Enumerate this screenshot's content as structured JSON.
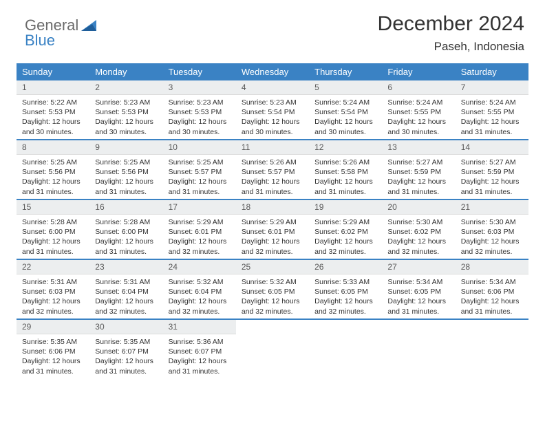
{
  "brand": {
    "word1": "General",
    "word2": "Blue"
  },
  "title": "December 2024",
  "location": "Paseh, Indonesia",
  "colors": {
    "header_bg": "#3a82c4",
    "header_fg": "#ffffff",
    "daynum_bg": "#eceeef",
    "daynum_fg": "#5a5a5a",
    "rule": "#3a82c4",
    "text": "#333333",
    "page_bg": "#ffffff"
  },
  "typography": {
    "title_fontsize": 30,
    "location_fontsize": 17,
    "header_fontsize": 13,
    "daynum_fontsize": 12,
    "body_fontsize": 10.5
  },
  "columns": [
    "Sunday",
    "Monday",
    "Tuesday",
    "Wednesday",
    "Thursday",
    "Friday",
    "Saturday"
  ],
  "weeks": [
    [
      {
        "n": "1",
        "sr": "Sunrise: 5:22 AM",
        "ss": "Sunset: 5:53 PM",
        "d1": "Daylight: 12 hours",
        "d2": "and 30 minutes."
      },
      {
        "n": "2",
        "sr": "Sunrise: 5:23 AM",
        "ss": "Sunset: 5:53 PM",
        "d1": "Daylight: 12 hours",
        "d2": "and 30 minutes."
      },
      {
        "n": "3",
        "sr": "Sunrise: 5:23 AM",
        "ss": "Sunset: 5:53 PM",
        "d1": "Daylight: 12 hours",
        "d2": "and 30 minutes."
      },
      {
        "n": "4",
        "sr": "Sunrise: 5:23 AM",
        "ss": "Sunset: 5:54 PM",
        "d1": "Daylight: 12 hours",
        "d2": "and 30 minutes."
      },
      {
        "n": "5",
        "sr": "Sunrise: 5:24 AM",
        "ss": "Sunset: 5:54 PM",
        "d1": "Daylight: 12 hours",
        "d2": "and 30 minutes."
      },
      {
        "n": "6",
        "sr": "Sunrise: 5:24 AM",
        "ss": "Sunset: 5:55 PM",
        "d1": "Daylight: 12 hours",
        "d2": "and 30 minutes."
      },
      {
        "n": "7",
        "sr": "Sunrise: 5:24 AM",
        "ss": "Sunset: 5:55 PM",
        "d1": "Daylight: 12 hours",
        "d2": "and 31 minutes."
      }
    ],
    [
      {
        "n": "8",
        "sr": "Sunrise: 5:25 AM",
        "ss": "Sunset: 5:56 PM",
        "d1": "Daylight: 12 hours",
        "d2": "and 31 minutes."
      },
      {
        "n": "9",
        "sr": "Sunrise: 5:25 AM",
        "ss": "Sunset: 5:56 PM",
        "d1": "Daylight: 12 hours",
        "d2": "and 31 minutes."
      },
      {
        "n": "10",
        "sr": "Sunrise: 5:25 AM",
        "ss": "Sunset: 5:57 PM",
        "d1": "Daylight: 12 hours",
        "d2": "and 31 minutes."
      },
      {
        "n": "11",
        "sr": "Sunrise: 5:26 AM",
        "ss": "Sunset: 5:57 PM",
        "d1": "Daylight: 12 hours",
        "d2": "and 31 minutes."
      },
      {
        "n": "12",
        "sr": "Sunrise: 5:26 AM",
        "ss": "Sunset: 5:58 PM",
        "d1": "Daylight: 12 hours",
        "d2": "and 31 minutes."
      },
      {
        "n": "13",
        "sr": "Sunrise: 5:27 AM",
        "ss": "Sunset: 5:59 PM",
        "d1": "Daylight: 12 hours",
        "d2": "and 31 minutes."
      },
      {
        "n": "14",
        "sr": "Sunrise: 5:27 AM",
        "ss": "Sunset: 5:59 PM",
        "d1": "Daylight: 12 hours",
        "d2": "and 31 minutes."
      }
    ],
    [
      {
        "n": "15",
        "sr": "Sunrise: 5:28 AM",
        "ss": "Sunset: 6:00 PM",
        "d1": "Daylight: 12 hours",
        "d2": "and 31 minutes."
      },
      {
        "n": "16",
        "sr": "Sunrise: 5:28 AM",
        "ss": "Sunset: 6:00 PM",
        "d1": "Daylight: 12 hours",
        "d2": "and 31 minutes."
      },
      {
        "n": "17",
        "sr": "Sunrise: 5:29 AM",
        "ss": "Sunset: 6:01 PM",
        "d1": "Daylight: 12 hours",
        "d2": "and 32 minutes."
      },
      {
        "n": "18",
        "sr": "Sunrise: 5:29 AM",
        "ss": "Sunset: 6:01 PM",
        "d1": "Daylight: 12 hours",
        "d2": "and 32 minutes."
      },
      {
        "n": "19",
        "sr": "Sunrise: 5:29 AM",
        "ss": "Sunset: 6:02 PM",
        "d1": "Daylight: 12 hours",
        "d2": "and 32 minutes."
      },
      {
        "n": "20",
        "sr": "Sunrise: 5:30 AM",
        "ss": "Sunset: 6:02 PM",
        "d1": "Daylight: 12 hours",
        "d2": "and 32 minutes."
      },
      {
        "n": "21",
        "sr": "Sunrise: 5:30 AM",
        "ss": "Sunset: 6:03 PM",
        "d1": "Daylight: 12 hours",
        "d2": "and 32 minutes."
      }
    ],
    [
      {
        "n": "22",
        "sr": "Sunrise: 5:31 AM",
        "ss": "Sunset: 6:03 PM",
        "d1": "Daylight: 12 hours",
        "d2": "and 32 minutes."
      },
      {
        "n": "23",
        "sr": "Sunrise: 5:31 AM",
        "ss": "Sunset: 6:04 PM",
        "d1": "Daylight: 12 hours",
        "d2": "and 32 minutes."
      },
      {
        "n": "24",
        "sr": "Sunrise: 5:32 AM",
        "ss": "Sunset: 6:04 PM",
        "d1": "Daylight: 12 hours",
        "d2": "and 32 minutes."
      },
      {
        "n": "25",
        "sr": "Sunrise: 5:32 AM",
        "ss": "Sunset: 6:05 PM",
        "d1": "Daylight: 12 hours",
        "d2": "and 32 minutes."
      },
      {
        "n": "26",
        "sr": "Sunrise: 5:33 AM",
        "ss": "Sunset: 6:05 PM",
        "d1": "Daylight: 12 hours",
        "d2": "and 32 minutes."
      },
      {
        "n": "27",
        "sr": "Sunrise: 5:34 AM",
        "ss": "Sunset: 6:05 PM",
        "d1": "Daylight: 12 hours",
        "d2": "and 31 minutes."
      },
      {
        "n": "28",
        "sr": "Sunrise: 5:34 AM",
        "ss": "Sunset: 6:06 PM",
        "d1": "Daylight: 12 hours",
        "d2": "and 31 minutes."
      }
    ],
    [
      {
        "n": "29",
        "sr": "Sunrise: 5:35 AM",
        "ss": "Sunset: 6:06 PM",
        "d1": "Daylight: 12 hours",
        "d2": "and 31 minutes."
      },
      {
        "n": "30",
        "sr": "Sunrise: 5:35 AM",
        "ss": "Sunset: 6:07 PM",
        "d1": "Daylight: 12 hours",
        "d2": "and 31 minutes."
      },
      {
        "n": "31",
        "sr": "Sunrise: 5:36 AM",
        "ss": "Sunset: 6:07 PM",
        "d1": "Daylight: 12 hours",
        "d2": "and 31 minutes."
      },
      {
        "n": "",
        "sr": "",
        "ss": "",
        "d1": "",
        "d2": ""
      },
      {
        "n": "",
        "sr": "",
        "ss": "",
        "d1": "",
        "d2": ""
      },
      {
        "n": "",
        "sr": "",
        "ss": "",
        "d1": "",
        "d2": ""
      },
      {
        "n": "",
        "sr": "",
        "ss": "",
        "d1": "",
        "d2": ""
      }
    ]
  ]
}
